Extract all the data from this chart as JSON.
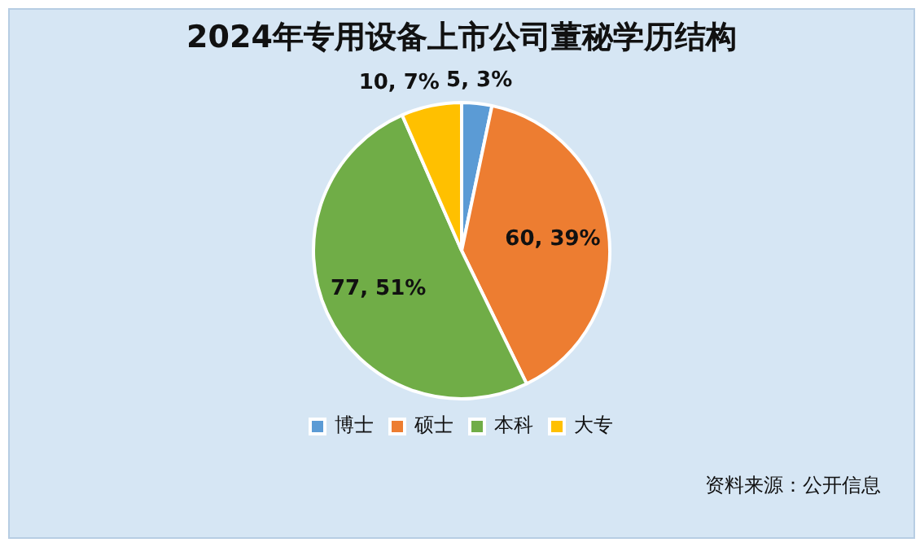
{
  "chart_data": {
    "type": "pie",
    "title": "2024年专用设备上市公司董秘学历结构",
    "categories": [
      "博士",
      "硕士",
      "本科",
      "大专"
    ],
    "values": [
      5,
      60,
      77,
      10
    ],
    "colors": [
      "#5b9bd5",
      "#ed7d31",
      "#70ad47",
      "#ffc000"
    ],
    "value_labels": [
      "5, 3%",
      "60, 39%",
      "77, 51%",
      "10, 7%"
    ],
    "legend": "bottom",
    "annotations": [
      "资料来源：公开信息"
    ]
  }
}
